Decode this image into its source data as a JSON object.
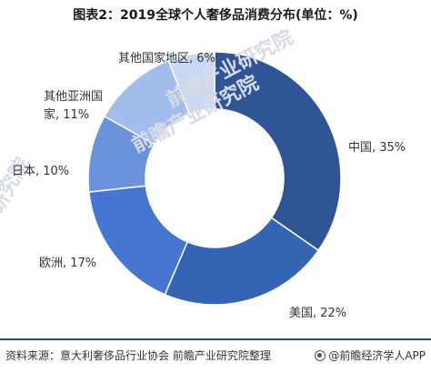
{
  "header": {
    "title": "图表2：2019全球个人奢侈品消费分布(单位：%)"
  },
  "chart_data": {
    "type": "pie",
    "variant": "donut",
    "unit": "%",
    "start_angle_deg": 0,
    "direction": "clockwise",
    "slices": [
      {
        "label": "中国",
        "value": 35,
        "text": "中国, 35%",
        "color": "#2f5597"
      },
      {
        "label": "美国",
        "value": 22,
        "text": "美国, 22%",
        "color": "#3464b4"
      },
      {
        "label": "欧洲",
        "value": 17,
        "text": "欧洲, 17%",
        "color": "#4577d0"
      },
      {
        "label": "日本",
        "value": 10,
        "text": "日本, 10%",
        "color": "#6b93dc"
      },
      {
        "label": "其他亚洲国家",
        "value": 11,
        "text_lines": [
          "其他亚洲国",
          "家, 11%"
        ],
        "color": "#a2bceb"
      },
      {
        "label": "其他国家地区",
        "value": 6,
        "text": "其他国家地区, 6%",
        "color": "#cbd8f3"
      }
    ]
  },
  "watermarks": [
    "前瞻产业研究院",
    "前瞻产业研究院",
    "研究院"
  ],
  "footer": {
    "source": "资料来源：意大利奢侈品行业协会 前瞻产业研究院整理",
    "brand": "@前瞻经济学人APP",
    "brand_icon": "brand-circle-icon"
  }
}
